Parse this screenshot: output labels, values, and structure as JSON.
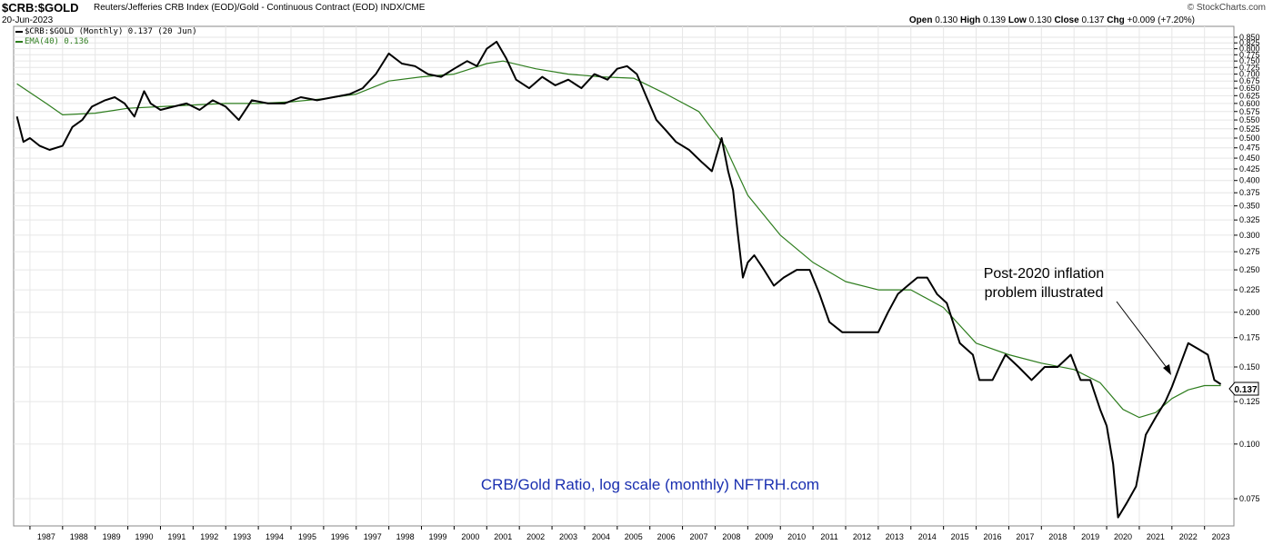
{
  "header": {
    "symbol": "$CRB:$GOLD",
    "description": "Reuters/Jefferies CRB Index (EOD)/Gold - Continuous Contract (EOD)",
    "exchange": "INDX/CME",
    "date": "20-Jun-2023",
    "open_label": "Open",
    "open": "0.130",
    "high_label": "High",
    "high": "0.139",
    "low_label": "Low",
    "low": "0.130",
    "close_label": "Close",
    "close": "0.137",
    "chg_label": "Chg",
    "chg": "+0.009 (+7.20%)",
    "brand": "© StockCharts.com"
  },
  "legend": {
    "series1": "$CRB:$GOLD (Monthly) 0.137 (20 Jun)",
    "series2": "EMA(40) 0.136"
  },
  "annotation": {
    "line1": "Post-2020 inflation",
    "line2": "problem illustrated"
  },
  "watermark": "CRB/Gold Ratio, log scale (monthly) NFTRH.com",
  "last_value_label": "0.137",
  "colors": {
    "price": "#000000",
    "ema": "#2e7d1e",
    "annotation": "#000000",
    "watermark": "#1a2fb0",
    "grid": "#e6e6e6"
  },
  "chart_data": {
    "type": "line",
    "title": "$CRB:$GOLD",
    "y_scale": "log",
    "ylim": [
      0.065,
      0.9
    ],
    "xlim": [
      1986.5,
      2023.9
    ],
    "y_ticks": [
      "0.850",
      "0.825",
      "0.800",
      "0.775",
      "0.750",
      "0.725",
      "0.700",
      "0.675",
      "0.650",
      "0.625",
      "0.600",
      "0.575",
      "0.550",
      "0.525",
      "0.500",
      "0.475",
      "0.450",
      "0.425",
      "0.400",
      "0.375",
      "0.350",
      "0.325",
      "0.300",
      "0.275",
      "0.250",
      "0.225",
      "0.200",
      "0.175",
      "0.150",
      "0.125",
      "0.100",
      "0.075"
    ],
    "x_ticks": [
      "1987",
      "1988",
      "1989",
      "1990",
      "1991",
      "1992",
      "1993",
      "1994",
      "1995",
      "1996",
      "1997",
      "1998",
      "1999",
      "2000",
      "2001",
      "2002",
      "2003",
      "2004",
      "2005",
      "2006",
      "2007",
      "2008",
      "2009",
      "2010",
      "2011",
      "2012",
      "2013",
      "2014",
      "2015",
      "2016",
      "2017",
      "2018",
      "2019",
      "2020",
      "2021",
      "2022",
      "2023"
    ],
    "grid": true,
    "legend_position": "top-left",
    "series": [
      {
        "name": "$CRB:$GOLD (Monthly)",
        "x": [
          1986.6,
          1986.8,
          1987.0,
          1987.3,
          1987.6,
          1988.0,
          1988.3,
          1988.6,
          1988.9,
          1989.3,
          1989.6,
          1989.9,
          1990.2,
          1990.5,
          1990.7,
          1991.0,
          1991.4,
          1991.8,
          1992.2,
          1992.6,
          1993.0,
          1993.4,
          1993.8,
          1994.3,
          1994.8,
          1995.3,
          1995.8,
          1996.3,
          1996.8,
          1997.2,
          1997.6,
          1998.0,
          1998.4,
          1998.8,
          1999.2,
          1999.6,
          2000.0,
          2000.4,
          2000.7,
          2001.0,
          2001.3,
          2001.6,
          2001.9,
          2002.3,
          2002.7,
          2003.1,
          2003.5,
          2003.9,
          2004.3,
          2004.7,
          2005.0,
          2005.3,
          2005.6,
          2005.9,
          2006.2,
          2006.5,
          2006.8,
          2007.2,
          2007.6,
          2007.9,
          2008.2,
          2008.4,
          2008.55,
          2008.7,
          2008.85,
          2009.0,
          2009.2,
          2009.5,
          2009.8,
          2010.1,
          2010.5,
          2010.9,
          2011.2,
          2011.5,
          2011.9,
          2012.3,
          2012.7,
          2013.0,
          2013.3,
          2013.6,
          2013.9,
          2014.2,
          2014.5,
          2014.8,
          2015.1,
          2015.5,
          2015.9,
          2016.1,
          2016.5,
          2016.9,
          2017.3,
          2017.7,
          2018.1,
          2018.5,
          2018.9,
          2019.2,
          2019.5,
          2019.8,
          2020.0,
          2020.2,
          2020.35,
          2020.6,
          2020.9,
          2021.2,
          2021.5,
          2021.8,
          2022.0,
          2022.2,
          2022.5,
          2022.8,
          2023.1,
          2023.3,
          2023.5
        ],
        "y": [
          0.56,
          0.49,
          0.5,
          0.48,
          0.47,
          0.48,
          0.53,
          0.55,
          0.59,
          0.61,
          0.62,
          0.6,
          0.56,
          0.64,
          0.6,
          0.58,
          0.59,
          0.6,
          0.58,
          0.61,
          0.59,
          0.55,
          0.61,
          0.6,
          0.6,
          0.62,
          0.61,
          0.62,
          0.63,
          0.65,
          0.7,
          0.78,
          0.74,
          0.73,
          0.7,
          0.69,
          0.72,
          0.75,
          0.73,
          0.8,
          0.83,
          0.76,
          0.68,
          0.65,
          0.69,
          0.66,
          0.68,
          0.65,
          0.7,
          0.68,
          0.72,
          0.73,
          0.7,
          0.62,
          0.55,
          0.52,
          0.49,
          0.47,
          0.44,
          0.42,
          0.5,
          0.42,
          0.38,
          0.3,
          0.24,
          0.26,
          0.27,
          0.25,
          0.23,
          0.24,
          0.25,
          0.25,
          0.22,
          0.19,
          0.18,
          0.18,
          0.18,
          0.18,
          0.2,
          0.22,
          0.23,
          0.24,
          0.24,
          0.22,
          0.21,
          0.17,
          0.16,
          0.14,
          0.14,
          0.16,
          0.15,
          0.14,
          0.15,
          0.15,
          0.16,
          0.14,
          0.14,
          0.12,
          0.11,
          0.09,
          0.068,
          0.073,
          0.08,
          0.105,
          0.115,
          0.125,
          0.135,
          0.148,
          0.17,
          0.165,
          0.16,
          0.14,
          0.137
        ]
      },
      {
        "name": "EMA(40)",
        "x": [
          1986.6,
          1987.5,
          1988.0,
          1989.0,
          1990.0,
          1991.0,
          1992.0,
          1993.0,
          1994.0,
          1995.0,
          1996.0,
          1997.0,
          1998.0,
          1999.0,
          2000.0,
          2001.0,
          2001.5,
          2002.5,
          2003.5,
          2004.5,
          2005.5,
          2006.5,
          2007.5,
          2008.3,
          2009.0,
          2010.0,
          2011.0,
          2012.0,
          2013.0,
          2014.0,
          2015.0,
          2016.0,
          2017.0,
          2018.0,
          2019.0,
          2019.8,
          2020.5,
          2021.0,
          2021.5,
          2022.0,
          2022.5,
          2023.0,
          2023.5
        ],
        "y": [
          0.665,
          0.6,
          0.565,
          0.57,
          0.585,
          0.59,
          0.595,
          0.6,
          0.6,
          0.605,
          0.615,
          0.63,
          0.675,
          0.69,
          0.7,
          0.74,
          0.75,
          0.72,
          0.7,
          0.69,
          0.685,
          0.63,
          0.575,
          0.48,
          0.37,
          0.3,
          0.26,
          0.235,
          0.225,
          0.225,
          0.205,
          0.17,
          0.16,
          0.153,
          0.148,
          0.138,
          0.12,
          0.115,
          0.118,
          0.127,
          0.133,
          0.136,
          0.136
        ]
      }
    ]
  }
}
